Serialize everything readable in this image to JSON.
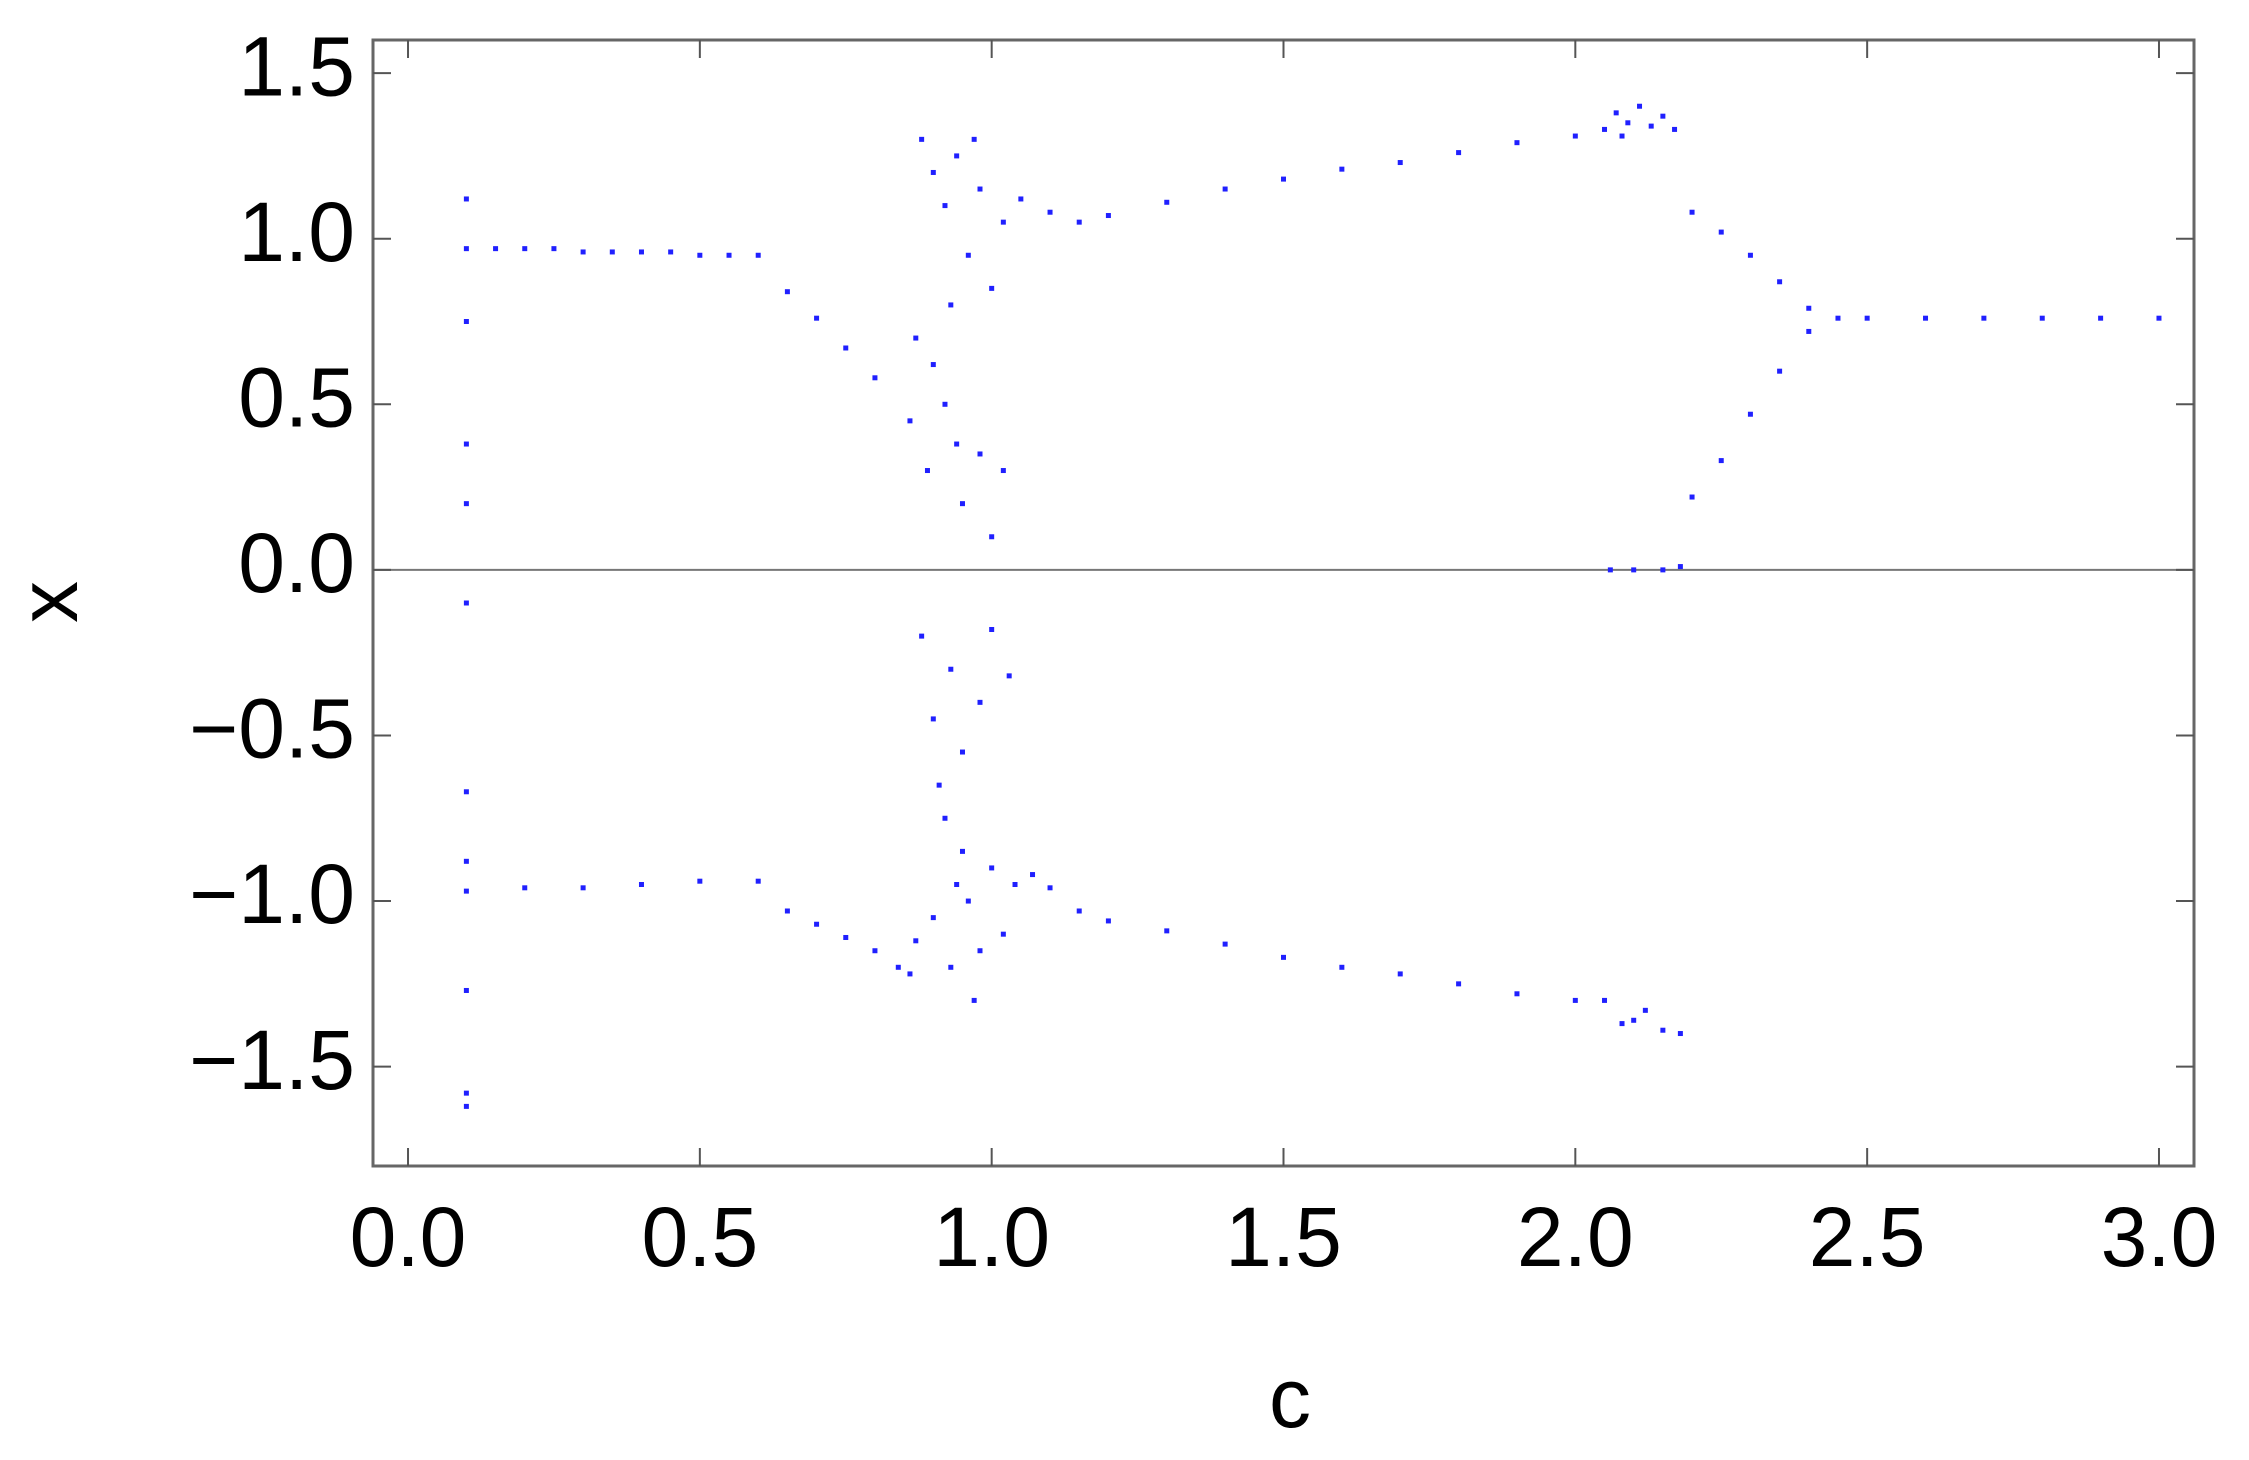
{
  "chart_data": {
    "type": "scatter",
    "xlabel": "c",
    "ylabel": "x",
    "color": "#2020ff",
    "xlim": [
      -0.06,
      3.06
    ],
    "ylim": [
      -1.8,
      1.6
    ],
    "xticks": [
      {
        "value": 0,
        "label": "0.0"
      },
      0.5,
      {
        "value": 1,
        "label": "1.0"
      },
      1.5,
      {
        "value": 2,
        "label": "2.0"
      },
      2.5,
      {
        "value": 3,
        "label": "3.0"
      }
    ],
    "yticks": [
      {
        "value": -1.5,
        "label": "−1.5"
      },
      {
        "value": -1,
        "label": "−1.0"
      },
      {
        "value": -0.5,
        "label": "−0.5"
      },
      {
        "value": 0,
        "label": "0.0"
      },
      0.5,
      {
        "value": 1,
        "label": "1.0"
      },
      1.5
    ],
    "x": [
      0.1,
      0.15,
      0.2,
      0.25,
      0.3,
      0.35,
      0.4,
      0.45,
      0.5,
      0.55,
      0.6,
      0.65,
      0.7,
      0.75,
      0.8,
      1.05,
      1.1,
      1.15,
      1.2,
      1.3,
      1.4,
      1.5,
      1.6,
      1.7,
      1.8,
      1.9,
      2.0,
      2.05,
      2.07,
      2.09,
      2.11,
      2.13,
      2.15,
      2.17,
      2.08,
      2.2,
      2.25,
      2.3,
      2.35,
      2.4,
      2.45,
      2.5,
      2.6,
      2.7,
      2.8,
      2.9,
      3.0,
      2.06,
      2.1,
      2.15,
      2.18,
      2.2,
      2.25,
      2.3,
      2.35,
      2.4,
      0.1,
      0.2,
      0.3,
      0.4,
      0.5,
      0.6,
      0.65,
      0.7,
      0.75,
      0.8,
      1.07,
      1.1,
      1.15,
      1.2,
      1.3,
      1.4,
      1.5,
      1.6,
      1.7,
      1.8,
      1.9,
      2.0,
      2.05,
      2.08,
      2.12,
      2.15,
      2.18,
      2.1,
      0.1,
      0.1,
      0.1,
      0.1,
      0.1,
      0.1,
      0.1,
      0.1,
      0.1,
      0.1,
      0.88,
      0.9,
      0.92,
      0.94,
      0.96,
      0.98,
      1.0,
      1.02,
      0.93,
      0.97,
      0.9,
      0.87,
      0.86,
      0.89,
      0.92,
      0.95,
      0.98,
      1.0,
      1.02,
      0.94,
      0.88,
      0.9,
      0.93,
      0.95,
      0.98,
      1.0,
      1.03,
      0.92,
      0.95,
      0.9,
      0.93,
      0.96,
      0.98,
      1.0,
      1.02,
      0.86,
      0.87,
      0.84,
      0.97,
      1.04,
      0.94,
      0.91
    ],
    "values": [
      0.97,
      0.97,
      0.97,
      0.97,
      0.96,
      0.96,
      0.96,
      0.96,
      0.95,
      0.95,
      0.95,
      0.84,
      0.76,
      0.67,
      0.58,
      1.12,
      1.08,
      1.05,
      1.07,
      1.11,
      1.15,
      1.18,
      1.21,
      1.23,
      1.26,
      1.29,
      1.31,
      1.33,
      1.38,
      1.35,
      1.4,
      1.34,
      1.37,
      1.33,
      1.31,
      1.08,
      1.02,
      0.95,
      0.87,
      0.79,
      0.76,
      0.76,
      0.76,
      0.76,
      0.76,
      0.76,
      0.76,
      0,
      0,
      0,
      0.01,
      0.22,
      0.33,
      0.47,
      0.6,
      0.72,
      -0.97,
      -0.96,
      -0.96,
      -0.95,
      -0.94,
      -0.94,
      -1.03,
      -1.07,
      -1.11,
      -1.15,
      -0.92,
      -0.96,
      -1.03,
      -1.06,
      -1.09,
      -1.13,
      -1.17,
      -1.2,
      -1.22,
      -1.25,
      -1.28,
      -1.3,
      -1.3,
      -1.37,
      -1.33,
      -1.39,
      -1.4,
      -1.36,
      1.12,
      0.75,
      0.38,
      0.2,
      -0.1,
      -0.67,
      -0.88,
      -1.27,
      -1.58,
      -1.62,
      1.3,
      1.2,
      1.1,
      1.25,
      0.95,
      1.15,
      0.85,
      1.05,
      0.8,
      1.3,
      0.62,
      0.7,
      0.45,
      0.3,
      0.5,
      0.2,
      0.35,
      0.1,
      0.3,
      0.38,
      -0.2,
      -0.45,
      -0.3,
      -0.55,
      -0.4,
      -0.18,
      -0.32,
      -0.75,
      -0.85,
      -1.05,
      -1.2,
      -1.0,
      -1.15,
      -0.9,
      -1.1,
      -1.22,
      -1.12,
      -1.2,
      -1.3,
      -0.95,
      -0.95,
      -0.65
    ]
  }
}
